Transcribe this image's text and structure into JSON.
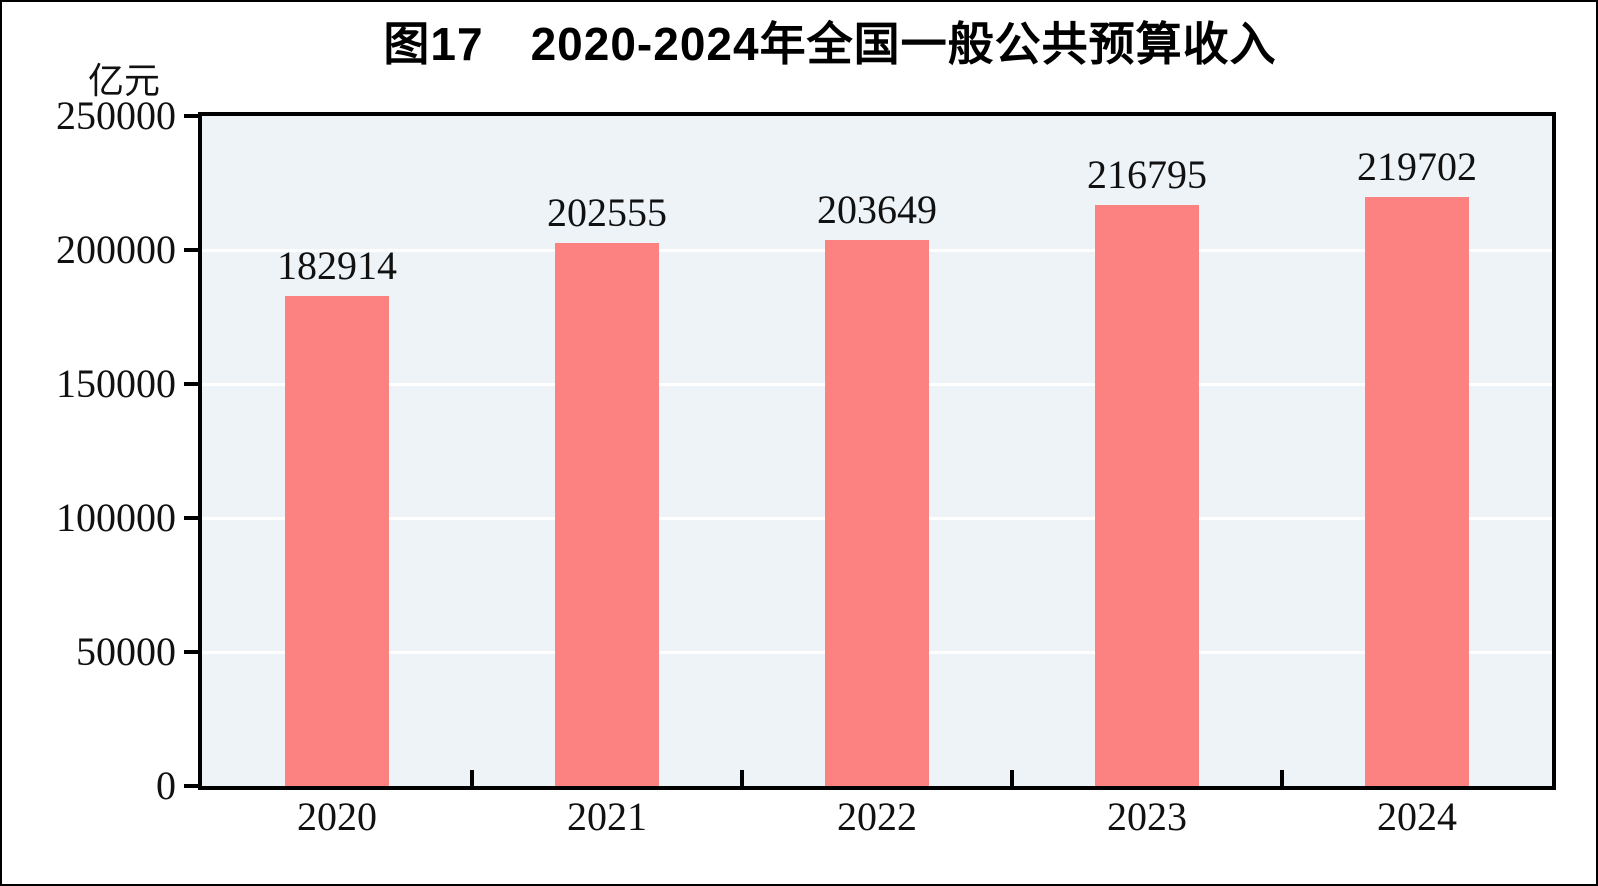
{
  "chart_data": {
    "type": "bar",
    "title": "图17　2020-2024年全国一般公共预算收入",
    "categories": [
      "2020",
      "2021",
      "2022",
      "2023",
      "2024"
    ],
    "values": [
      182914,
      202555,
      203649,
      216795,
      219702
    ],
    "data_labels": [
      "182914",
      "202555",
      "203649",
      "216795",
      "219702"
    ],
    "xlabel": "",
    "ylabel": "亿元",
    "ylim": [
      0,
      250000
    ],
    "ytick_interval": 50000,
    "yticks": [
      "0",
      "50000",
      "100000",
      "150000",
      "200000",
      "250000"
    ],
    "grid": "horizontal-major",
    "legend": "none",
    "colors": {
      "bar": "#FC8181",
      "plot_background": "#EDF3F7",
      "gridline": "#FFFFFF",
      "axis": "#000000",
      "text": "#111111",
      "page_background": "#FFFFFF"
    }
  }
}
